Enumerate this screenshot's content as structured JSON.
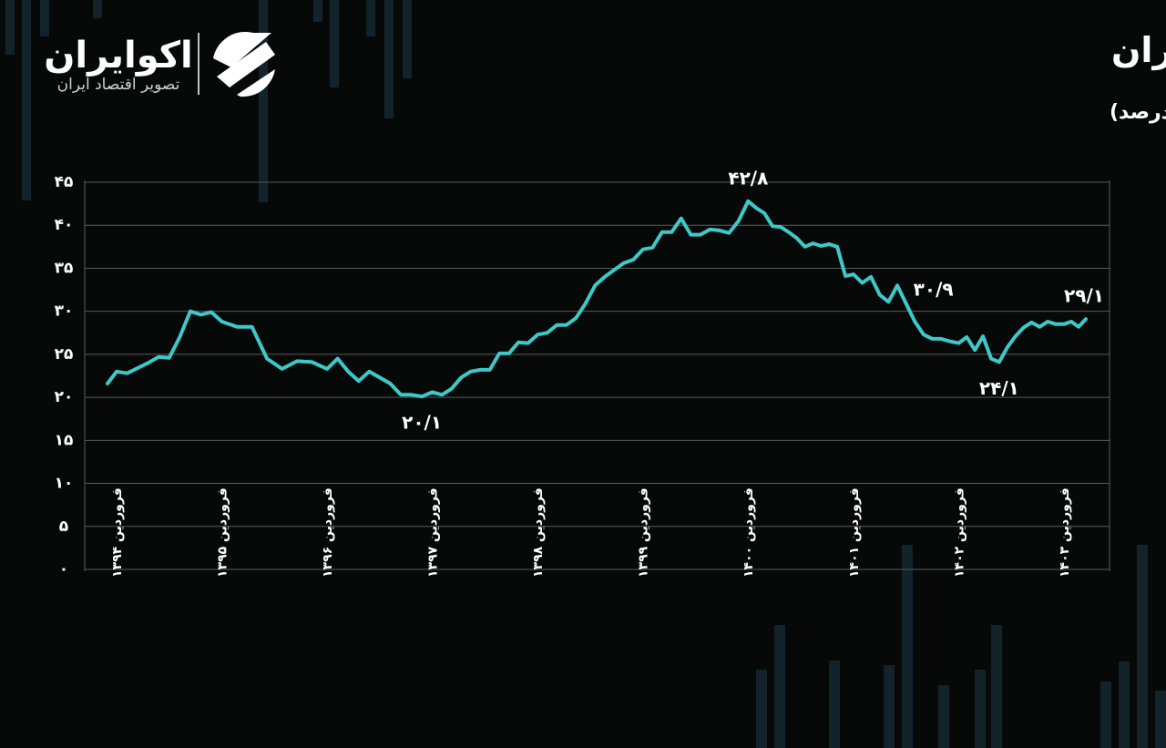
{
  "logo": {
    "name": "اکوایران",
    "tagline": "تصویر اقتصاد ایران"
  },
  "chart_data": {
    "type": "line",
    "title": "نرخ رشد نقدینگی در اقتصاد ایران",
    "subtitle": "(واحد: درصد)",
    "color": "#3ec9c9",
    "grid": true,
    "categories": [
      null,
      "فروردین ۱۳۹۴",
      null,
      null,
      null,
      null,
      null,
      null,
      null,
      null,
      null,
      "فروردین ۱۳۹۵",
      null,
      null,
      null,
      null,
      null,
      null,
      "فروردین ۱۳۹۶",
      null,
      null,
      null,
      null,
      null,
      null,
      null,
      null,
      null,
      "فروردین ۱۳۹۷",
      null,
      null,
      null,
      null,
      null,
      null,
      null,
      null,
      null,
      null,
      "فروردین ۱۳۹۸",
      null,
      null,
      null,
      null,
      null,
      null,
      null,
      null,
      null,
      null,
      "فروردین ۱۳۹۹",
      null,
      null,
      null,
      null,
      null,
      null,
      null,
      null,
      null,
      null,
      "فروردین ۱۴۰۰",
      null,
      null,
      null,
      null,
      null,
      null,
      null,
      null,
      null,
      null,
      null,
      null,
      "فروردین ۱۴۰۱",
      null,
      null,
      null,
      null,
      null,
      null,
      null,
      null,
      null,
      null,
      null,
      "فروردین ۱۴۰۲",
      null,
      null,
      null,
      null,
      null,
      null,
      null,
      null,
      null,
      null,
      null,
      null,
      "فروردین ۱۴۰۳",
      null,
      null,
      null
    ],
    "values": [
      21.6,
      23.0,
      22.8,
      23.4,
      24.0,
      24.7,
      24.6,
      27.0,
      30.0,
      29.6,
      29.9,
      28.8,
      28.2,
      28.2,
      24.5,
      23.3,
      24.2,
      24.1,
      23.3,
      24.5,
      23.0,
      21.9,
      23.0,
      22.3,
      21.6,
      20.3,
      20.3,
      20.1,
      20.6,
      20.3,
      21.0,
      22.3,
      23.0,
      23.2,
      23.2,
      25.1,
      25.1,
      26.4,
      26.3,
      27.3,
      27.5,
      28.4,
      28.4,
      29.2,
      30.9,
      33.0,
      34.0,
      34.8,
      35.6,
      36.0,
      37.2,
      37.4,
      39.2,
      39.2,
      40.8,
      38.9,
      38.9,
      39.5,
      39.4,
      39.1,
      40.5,
      42.8,
      42.0,
      41.4,
      39.9,
      39.8,
      39.2,
      38.5,
      37.5,
      37.9,
      37.6,
      37.8,
      37.5,
      34.1,
      34.3,
      33.3,
      34.0,
      31.9,
      31.1,
      33.0,
      30.9,
      28.8,
      27.3,
      26.8,
      26.8,
      26.5,
      26.3,
      27.0,
      25.5,
      27.1,
      24.5,
      24.1,
      25.8,
      27.1,
      28.1,
      28.7,
      28.2,
      28.8,
      28.5,
      28.5,
      28.8,
      28.2,
      29.1
    ],
    "value_labels": [
      null,
      null,
      null,
      null,
      null,
      null,
      null,
      null,
      null,
      null,
      null,
      null,
      null,
      null,
      null,
      null,
      null,
      null,
      null,
      null,
      null,
      null,
      null,
      null,
      null,
      null,
      null,
      "۲۰/۱",
      null,
      null,
      null,
      null,
      null,
      null,
      null,
      null,
      null,
      null,
      null,
      null,
      null,
      null,
      null,
      null,
      null,
      null,
      null,
      null,
      null,
      null,
      null,
      null,
      null,
      null,
      null,
      null,
      null,
      null,
      null,
      null,
      null,
      "۴۲/۸",
      null,
      null,
      null,
      null,
      null,
      null,
      null,
      null,
      null,
      null,
      null,
      null,
      null,
      null,
      null,
      null,
      null,
      null,
      "۳۰/۹",
      null,
      null,
      null,
      null,
      null,
      null,
      null,
      null,
      null,
      null,
      "۲۴/۱",
      null,
      null,
      null,
      null,
      null,
      null,
      null,
      null,
      null,
      null,
      "۲۹/۱"
    ],
    "ylim": [
      0,
      45
    ],
    "yticks": [
      {
        "value": 0,
        "label": "۰"
      },
      {
        "value": 5,
        "label": "۵"
      },
      {
        "value": 10,
        "label": "۱۰"
      },
      {
        "value": 15,
        "label": "۱۵"
      },
      {
        "value": 20,
        "label": "۲۰"
      },
      {
        "value": 25,
        "label": "۲۵"
      },
      {
        "value": 30,
        "label": "۳۰"
      },
      {
        "value": 35,
        "label": "۳۵"
      },
      {
        "value": 40,
        "label": "۴۰"
      },
      {
        "value": 45,
        "label": "۴۵"
      }
    ]
  }
}
